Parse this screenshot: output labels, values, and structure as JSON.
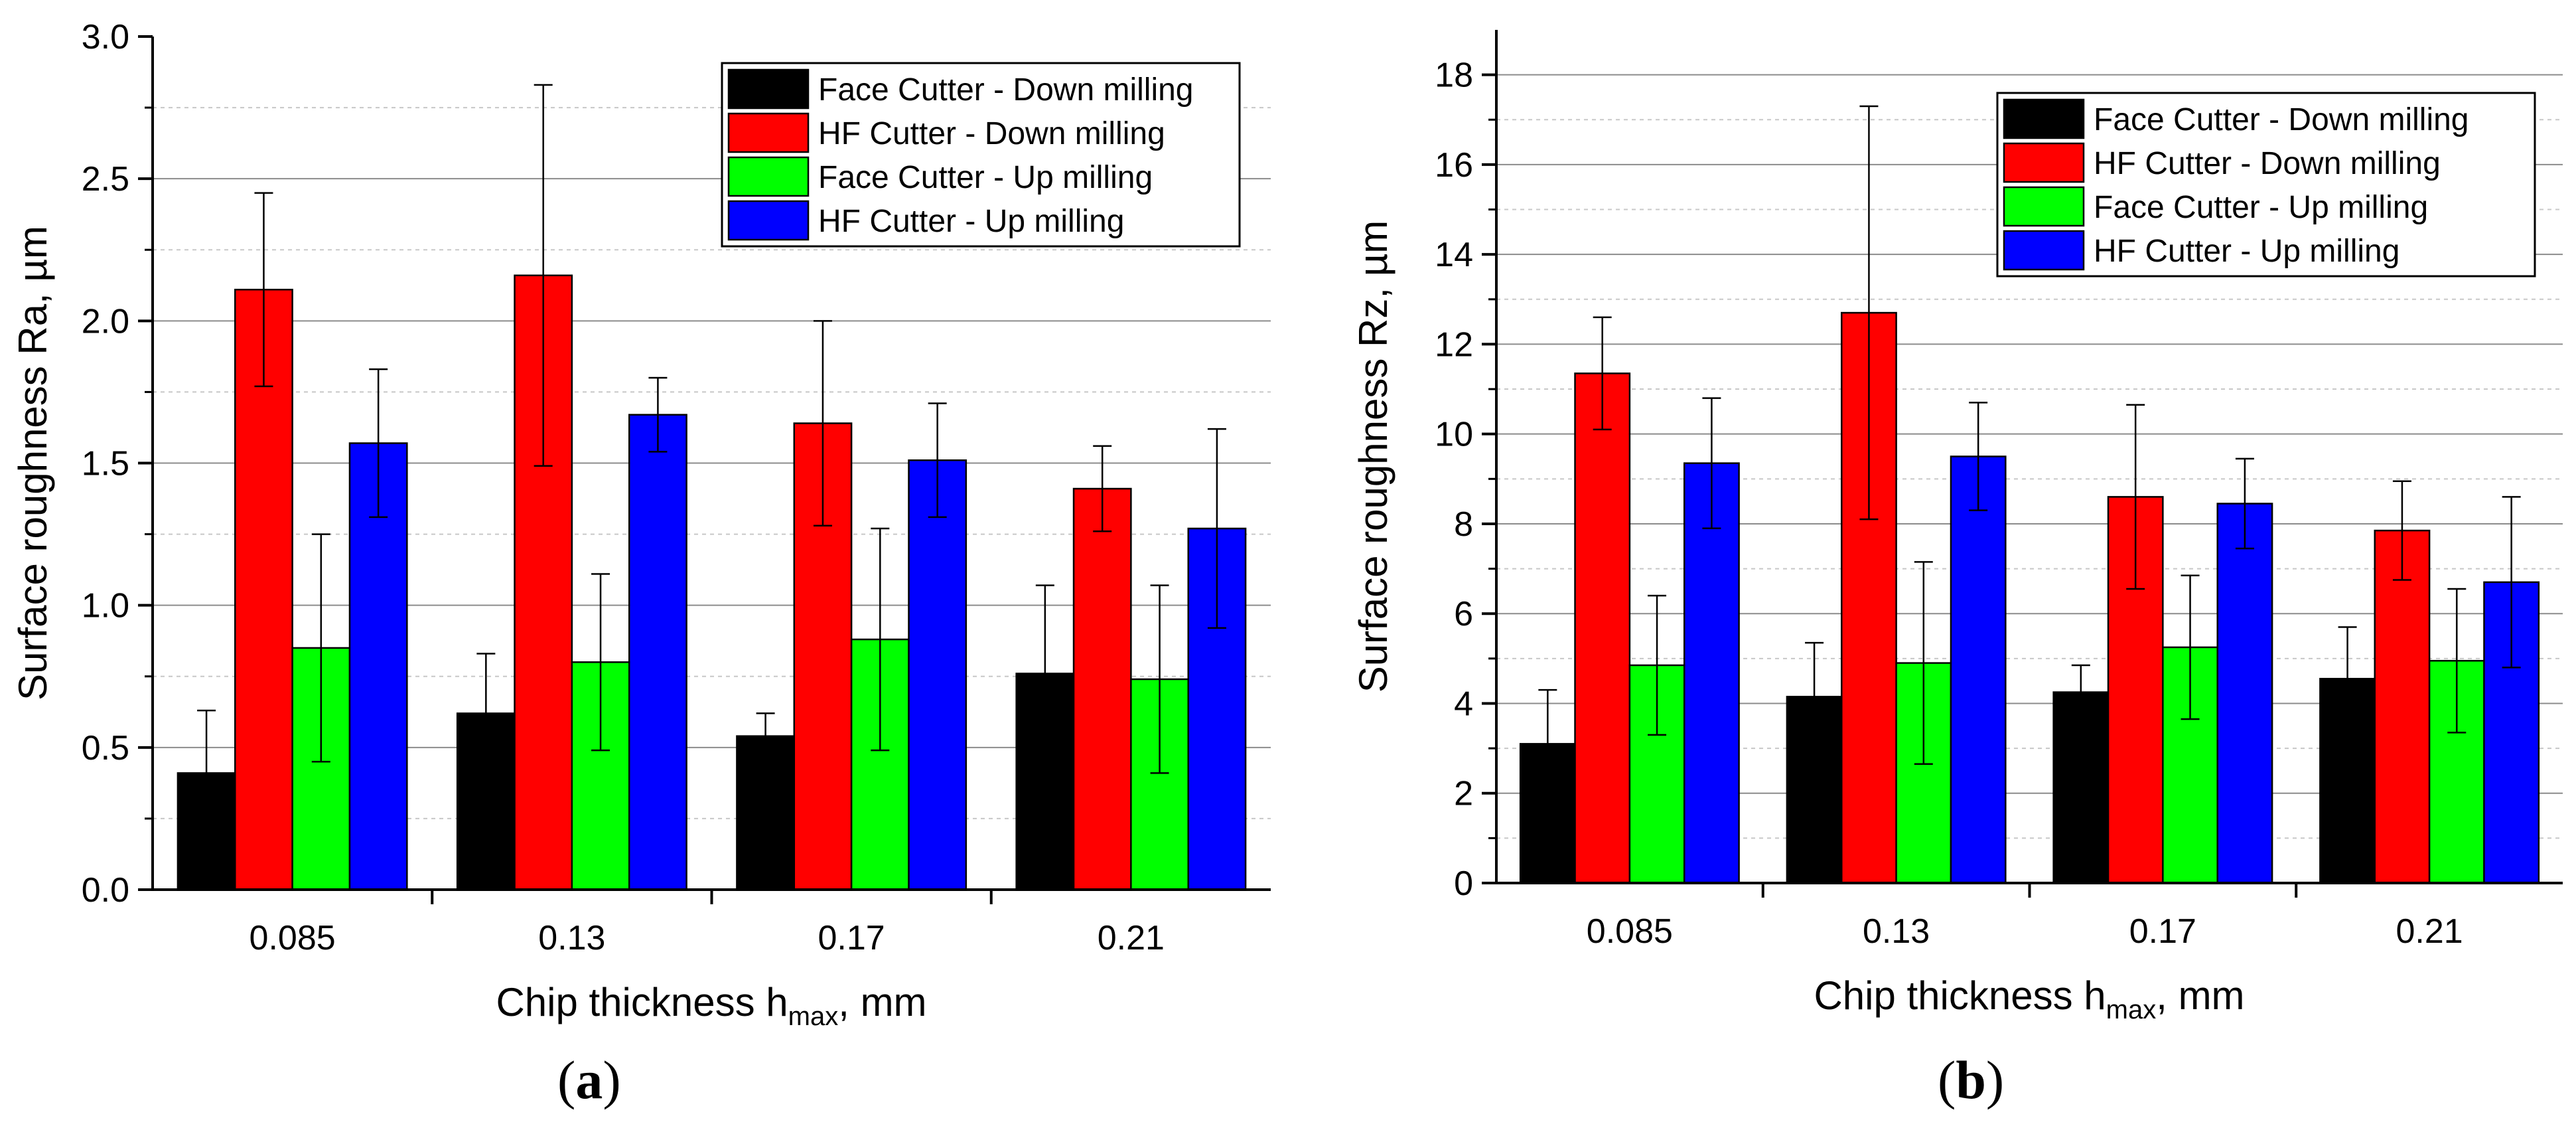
{
  "figure": {
    "captions": [
      {
        "open": "(",
        "letter": "a",
        "close": ")"
      },
      {
        "open": "(",
        "letter": "b",
        "close": ")"
      }
    ]
  },
  "chart_data": [
    {
      "type": "bar",
      "title": "",
      "xlabel": "Chip thickness h",
      "xlabel_sub": "max",
      "xlabel_suffix": ", mm",
      "ylabel": "Surface roughness Ra, µm",
      "categories": [
        "0.085",
        "0.13",
        "0.17",
        "0.21"
      ],
      "ylim": [
        0,
        3.0
      ],
      "yticks": [
        0.0,
        0.5,
        1.0,
        1.5,
        2.0,
        2.5,
        3.0
      ],
      "ytick_labels": [
        "0.0",
        "0.5",
        "1.0",
        "1.5",
        "2.0",
        "2.5",
        "3.0"
      ],
      "grid_major": [
        0.5,
        1.0,
        1.5,
        2.0,
        2.5
      ],
      "grid_minor": [
        0.25,
        0.75,
        1.25,
        1.75,
        2.25,
        2.75
      ],
      "legend_position": "top-right",
      "series": [
        {
          "name": "Face Cutter - Down milling",
          "color": "#000000",
          "values": [
            0.41,
            0.62,
            0.54,
            0.76
          ],
          "errors": [
            0.22,
            0.21,
            0.08,
            0.31
          ]
        },
        {
          "name": "HF Cutter - Down milling",
          "color": "#ff0000",
          "values": [
            2.11,
            2.16,
            1.64,
            1.41
          ],
          "errors": [
            0.34,
            0.67,
            0.36,
            0.15
          ]
        },
        {
          "name": "Face Cutter - Up milling",
          "color": "#00ff00",
          "values": [
            0.85,
            0.8,
            0.88,
            0.74
          ],
          "errors": [
            0.4,
            0.31,
            0.39,
            0.33
          ]
        },
        {
          "name": "HF Cutter - Up milling",
          "color": "#0000ff",
          "values": [
            1.57,
            1.67,
            1.51,
            1.27
          ],
          "errors": [
            0.26,
            0.13,
            0.2,
            0.35
          ]
        }
      ]
    },
    {
      "type": "bar",
      "title": "",
      "xlabel": "Chip thickness h",
      "xlabel_sub": "max",
      "xlabel_suffix": ", mm",
      "ylabel": "Surface roughness Rz, µm",
      "categories": [
        "0.085",
        "0.13",
        "0.17",
        "0.21"
      ],
      "ylim": [
        0,
        19
      ],
      "yticks": [
        0,
        2,
        4,
        6,
        8,
        10,
        12,
        14,
        16,
        18
      ],
      "ytick_labels": [
        "0",
        "2",
        "4",
        "6",
        "8",
        "10",
        "12",
        "14",
        "16",
        "18"
      ],
      "grid_major": [
        2,
        4,
        6,
        8,
        10,
        12,
        14,
        16,
        18
      ],
      "grid_minor": [
        1,
        3,
        5,
        7,
        9,
        11,
        13,
        15,
        17
      ],
      "legend_position": "top-right",
      "series": [
        {
          "name": "Face Cutter - Down milling",
          "color": "#000000",
          "values": [
            3.1,
            4.15,
            4.25,
            4.55
          ],
          "errors": [
            1.2,
            1.2,
            0.6,
            1.15
          ]
        },
        {
          "name": "HF Cutter - Down milling",
          "color": "#ff0000",
          "values": [
            11.35,
            12.7,
            8.6,
            7.85
          ],
          "errors": [
            1.25,
            4.6,
            2.05,
            1.1
          ]
        },
        {
          "name": "Face Cutter - Up milling",
          "color": "#00ff00",
          "values": [
            4.85,
            4.9,
            5.25,
            4.95
          ],
          "errors": [
            1.55,
            2.25,
            1.6,
            1.6
          ]
        },
        {
          "name": "HF Cutter - Up milling",
          "color": "#0000ff",
          "values": [
            9.35,
            9.5,
            8.45,
            6.7
          ],
          "errors": [
            1.45,
            1.2,
            1.0,
            1.9
          ]
        }
      ]
    }
  ]
}
